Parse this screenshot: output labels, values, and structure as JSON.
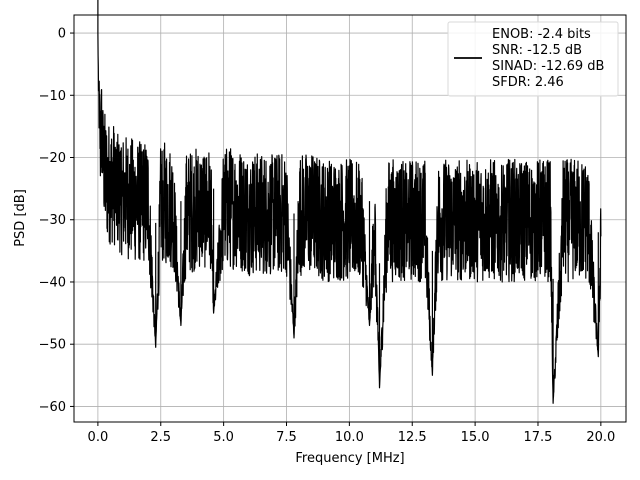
{
  "chart_data": {
    "type": "line",
    "title": "",
    "xlabel": "Frequency [MHz]",
    "ylabel": "PSD [dB]",
    "xlim": [
      -0.95,
      21.0
    ],
    "ylim": [
      -62.5,
      2.9
    ],
    "xticks": [
      0.0,
      2.5,
      5.0,
      7.5,
      10.0,
      12.5,
      15.0,
      17.5,
      20.0
    ],
    "xtick_labels": [
      "0.0",
      "2.5",
      "5.0",
      "7.5",
      "10.0",
      "12.5",
      "15.0",
      "17.5",
      "20.0"
    ],
    "yticks": [
      0,
      -10,
      -20,
      -30,
      -40,
      -50,
      -60
    ],
    "ytick_labels": [
      "0",
      "−10",
      "−20",
      "−30",
      "−40",
      "−50",
      "−60"
    ],
    "grid": true,
    "legend_position": "top-right",
    "legend_lines": [
      "ENOB: -2.4 bits",
      "SNR: -12.5 dB",
      "SINAD: -12.69 dB",
      "SFDR: 2.46"
    ],
    "series": [
      {
        "color": "#000000",
        "x": [
          0.0,
          0.02,
          0.05,
          0.1,
          0.15,
          0.2,
          0.3,
          0.4,
          0.6,
          0.8,
          1.0,
          1.5,
          2.0,
          2.3,
          2.5,
          3.0,
          3.3,
          3.5,
          4.0,
          4.5,
          4.6,
          5.0,
          5.5,
          6.0,
          6.5,
          7.0,
          7.5,
          7.8,
          8.0,
          8.5,
          9.0,
          9.5,
          10.0,
          10.5,
          10.8,
          11.0,
          11.2,
          11.5,
          12.0,
          12.5,
          13.0,
          13.3,
          13.5,
          14.0,
          14.5,
          15.0,
          15.5,
          16.0,
          16.5,
          17.0,
          17.5,
          18.0,
          18.1,
          18.5,
          19.0,
          19.5,
          19.9,
          20.0
        ],
        "y": [
          0,
          -8,
          -12,
          -18,
          -15,
          -20,
          -23,
          -24,
          -24,
          -25,
          -26,
          -27,
          -27,
          -50.5,
          -27,
          -28,
          -47,
          -29,
          -28,
          -28,
          -45,
          -28,
          -28,
          -29,
          -29,
          -29,
          -29,
          -49,
          -29,
          -29,
          -30,
          -30,
          -30,
          -30,
          -47,
          -30,
          -57,
          -30,
          -30,
          -30,
          -30,
          -55,
          -30,
          -30,
          -30,
          -30,
          -30,
          -30,
          -30,
          -30,
          -30,
          -30,
          -59.5,
          -30,
          -30,
          -30,
          -52,
          -30
        ],
        "spread": [
          0,
          4,
          6,
          8,
          9,
          9,
          10,
          10,
          10,
          10,
          10,
          10,
          10,
          0,
          10,
          10,
          0,
          10,
          10,
          10,
          0,
          10,
          10,
          10,
          10,
          10,
          10,
          0,
          10,
          10,
          10,
          10,
          10,
          10,
          0,
          10,
          0,
          10,
          10,
          10,
          10,
          0,
          10,
          10,
          10,
          10,
          10,
          10,
          10,
          10,
          10,
          10,
          0,
          10,
          10,
          10,
          0,
          10
        ]
      }
    ]
  }
}
